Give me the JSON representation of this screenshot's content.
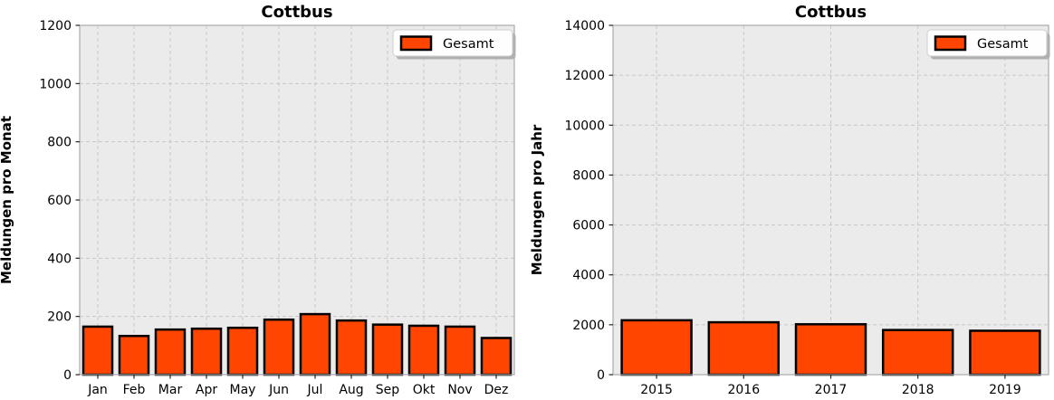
{
  "figure": {
    "background": "#ffffff"
  },
  "colors": {
    "bar_fill": "#FF4500",
    "bar_edge": "#000000",
    "plot_background": "#EBEBEB",
    "grid_line": "#C8C8C8",
    "spine": "#ABABAB",
    "tick_mark": "#262626",
    "text": "#000000",
    "legend_background": "#FEFEFE",
    "legend_border": "#CCCCCC",
    "legend_shadow": "#B0B0B0"
  },
  "chart_data": [
    {
      "type": "bar",
      "title": "Cottbus",
      "ylabel": "Meldungen pro Monat",
      "xlabel": "",
      "categories": [
        "Jan",
        "Feb",
        "Mar",
        "Apr",
        "May",
        "Jun",
        "Jul",
        "Aug",
        "Sep",
        "Okt",
        "Nov",
        "Dez"
      ],
      "series": [
        {
          "name": "Gesamt",
          "values": [
            165,
            133,
            155,
            158,
            161,
            189,
            208,
            186,
            172,
            168,
            165,
            126
          ]
        }
      ],
      "ylim": [
        0,
        1200
      ],
      "yticks": [
        0,
        200,
        400,
        600,
        800,
        1000,
        1200
      ],
      "grid": true,
      "grid_linestyle": "dashed",
      "legend_position": "upper right",
      "legend_label": "Gesamt"
    },
    {
      "type": "bar",
      "title": "Cottbus",
      "ylabel": "Meldungen pro Jahr",
      "xlabel": "",
      "categories": [
        "2015",
        "2016",
        "2017",
        "2018",
        "2019"
      ],
      "series": [
        {
          "name": "Gesamt",
          "values": [
            2180,
            2100,
            2020,
            1790,
            1760
          ]
        }
      ],
      "ylim": [
        0,
        14000
      ],
      "yticks": [
        0,
        2000,
        4000,
        6000,
        8000,
        10000,
        12000,
        14000
      ],
      "grid": true,
      "grid_linestyle": "dashed",
      "legend_position": "upper right",
      "legend_label": "Gesamt"
    }
  ]
}
